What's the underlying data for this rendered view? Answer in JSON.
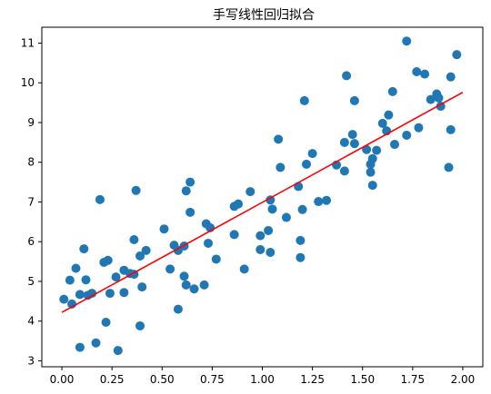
{
  "chart_data": {
    "type": "scatter",
    "title": "手写线性回归拟合",
    "xlabel": "",
    "ylabel": "",
    "xlim": [
      -0.1,
      2.1
    ],
    "ylim": [
      2.85,
      11.4
    ],
    "xticks": [
      "0.00",
      "0.25",
      "0.50",
      "0.75",
      "1.00",
      "1.25",
      "1.50",
      "1.75",
      "2.00"
    ],
    "yticks": [
      "3",
      "4",
      "5",
      "6",
      "7",
      "8",
      "9",
      "10",
      "11"
    ],
    "grid": false,
    "point_color": "#1f77b4",
    "line_color": "#ff0000",
    "series": [
      {
        "type": "scatter",
        "points": [
          [
            0.01,
            4.55
          ],
          [
            0.04,
            5.03
          ],
          [
            0.05,
            4.43
          ],
          [
            0.07,
            5.33
          ],
          [
            0.09,
            3.34
          ],
          [
            0.09,
            4.67
          ],
          [
            0.11,
            5.82
          ],
          [
            0.12,
            5.04
          ],
          [
            0.13,
            4.65
          ],
          [
            0.15,
            4.7
          ],
          [
            0.17,
            3.45
          ],
          [
            0.19,
            7.06
          ],
          [
            0.21,
            5.48
          ],
          [
            0.22,
            3.97
          ],
          [
            0.23,
            5.53
          ],
          [
            0.24,
            4.7
          ],
          [
            0.27,
            5.11
          ],
          [
            0.28,
            3.26
          ],
          [
            0.31,
            4.72
          ],
          [
            0.31,
            5.28
          ],
          [
            0.34,
            5.2
          ],
          [
            0.36,
            5.18
          ],
          [
            0.36,
            6.05
          ],
          [
            0.37,
            7.29
          ],
          [
            0.39,
            5.64
          ],
          [
            0.39,
            3.88
          ],
          [
            0.4,
            4.86
          ],
          [
            0.42,
            5.78
          ],
          [
            0.51,
            6.32
          ],
          [
            0.54,
            5.31
          ],
          [
            0.56,
            5.91
          ],
          [
            0.58,
            4.3
          ],
          [
            0.58,
            5.78
          ],
          [
            0.61,
            5.13
          ],
          [
            0.61,
            5.89
          ],
          [
            0.62,
            7.28
          ],
          [
            0.62,
            4.91
          ],
          [
            0.64,
            7.5
          ],
          [
            0.64,
            6.74
          ],
          [
            0.66,
            4.81
          ],
          [
            0.71,
            4.91
          ],
          [
            0.72,
            6.45
          ],
          [
            0.73,
            5.96
          ],
          [
            0.74,
            6.35
          ],
          [
            0.77,
            5.56
          ],
          [
            0.86,
            6.89
          ],
          [
            0.86,
            6.18
          ],
          [
            0.88,
            6.95
          ],
          [
            0.91,
            5.31
          ],
          [
            0.94,
            7.26
          ],
          [
            0.99,
            6.15
          ],
          [
            0.99,
            5.8
          ],
          [
            1.03,
            6.28
          ],
          [
            1.04,
            7.05
          ],
          [
            1.04,
            5.73
          ],
          [
            1.05,
            6.82
          ],
          [
            1.08,
            8.58
          ],
          [
            1.09,
            7.87
          ],
          [
            1.12,
            6.61
          ],
          [
            1.18,
            7.39
          ],
          [
            1.19,
            5.6
          ],
          [
            1.19,
            6.03
          ],
          [
            1.2,
            6.81
          ],
          [
            1.21,
            9.55
          ],
          [
            1.22,
            7.95
          ],
          [
            1.25,
            8.22
          ],
          [
            1.28,
            7.01
          ],
          [
            1.32,
            7.04
          ],
          [
            1.37,
            7.93
          ],
          [
            1.41,
            8.5
          ],
          [
            1.41,
            7.78
          ],
          [
            1.42,
            10.18
          ],
          [
            1.45,
            8.7
          ],
          [
            1.46,
            9.55
          ],
          [
            1.46,
            8.47
          ],
          [
            1.52,
            8.32
          ],
          [
            1.54,
            7.95
          ],
          [
            1.54,
            7.75
          ],
          [
            1.55,
            8.09
          ],
          [
            1.55,
            7.42
          ],
          [
            1.57,
            8.3
          ],
          [
            1.6,
            8.98
          ],
          [
            1.62,
            8.79
          ],
          [
            1.63,
            9.19
          ],
          [
            1.65,
            9.78
          ],
          [
            1.66,
            8.45
          ],
          [
            1.72,
            8.68
          ],
          [
            1.72,
            11.05
          ],
          [
            1.77,
            10.28
          ],
          [
            1.78,
            8.87
          ],
          [
            1.81,
            10.22
          ],
          [
            1.84,
            9.58
          ],
          [
            1.87,
            9.72
          ],
          [
            1.88,
            9.62
          ],
          [
            1.89,
            9.41
          ],
          [
            1.93,
            7.87
          ],
          [
            1.94,
            8.82
          ],
          [
            1.94,
            10.15
          ],
          [
            1.97,
            10.71
          ]
        ]
      },
      {
        "type": "line",
        "points": [
          [
            0.0,
            4.22
          ],
          [
            2.0,
            9.76
          ]
        ]
      }
    ]
  }
}
